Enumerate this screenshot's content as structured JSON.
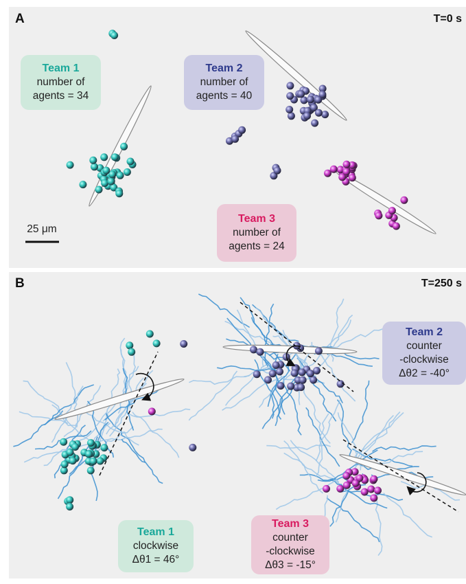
{
  "panels": [
    {
      "label": "A",
      "time": "T=0 s",
      "scale_bar": "25 μm",
      "teams": [
        {
          "title": "Team 1",
          "lines": [
            "number of",
            "agents = 34"
          ]
        },
        {
          "title": "Team 2",
          "lines": [
            "number of",
            "agents = 40"
          ]
        },
        {
          "title": "Team 3",
          "lines": [
            "number of",
            "agents = 24"
          ]
        }
      ]
    },
    {
      "label": "B",
      "time": "T=250 s",
      "teams": [
        {
          "title": "Team 2",
          "lines": [
            "counter",
            "-clockwise",
            "Δθ2 = -40°"
          ]
        },
        {
          "title": "Team 1",
          "lines": [
            "clockwise",
            "Δθ1 = 46°"
          ]
        },
        {
          "title": "Team 3",
          "lines": [
            "counter",
            "-clockwise",
            "Δθ3 = -15°"
          ]
        }
      ]
    }
  ]
}
